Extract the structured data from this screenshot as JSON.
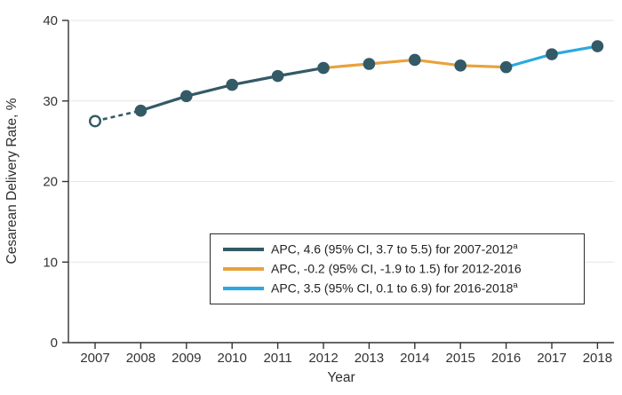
{
  "chart_data": {
    "type": "line",
    "title": "",
    "xlabel": "Year",
    "ylabel": "Cesarean Delivery Rate, %",
    "x": [
      2007,
      2008,
      2009,
      2010,
      2011,
      2012,
      2013,
      2014,
      2015,
      2016,
      2017,
      2018
    ],
    "values": [
      27.5,
      28.8,
      30.6,
      32.0,
      33.1,
      34.1,
      34.6,
      35.1,
      34.4,
      34.2,
      35.8,
      36.8
    ],
    "ylim": [
      0,
      40
    ],
    "yticks": [
      0,
      10,
      20,
      30,
      40
    ],
    "grid": "horizontal",
    "legend_position": "inside-bottom-right",
    "marker_color": "#335A66",
    "open_markers": [
      2007
    ],
    "dashed_segments": [
      [
        2007,
        2008
      ]
    ],
    "series": [
      {
        "label": "APC, 4.6 (95% CI, 3.7 to 5.5) for 2007-2012",
        "sup": "a",
        "color": "#335A66",
        "x_start": 2007,
        "x_end": 2012
      },
      {
        "label": "APC, -0.2 (95% CI, -1.9 to 1.5) for 2012-2016",
        "sup": "",
        "color": "#E8A23C",
        "x_start": 2012,
        "x_end": 2016
      },
      {
        "label": "APC, 3.5 (95% CI, 0.1 to 6.9) for 2016-2018",
        "sup": "a",
        "color": "#29A9E0",
        "x_start": 2016,
        "x_end": 2018
      }
    ]
  },
  "colors": {
    "axis": "#333333",
    "grid": "#E5E5E5",
    "text": "#333333",
    "legend_border": "#2B2B2B",
    "background": "#FFFFFF"
  }
}
